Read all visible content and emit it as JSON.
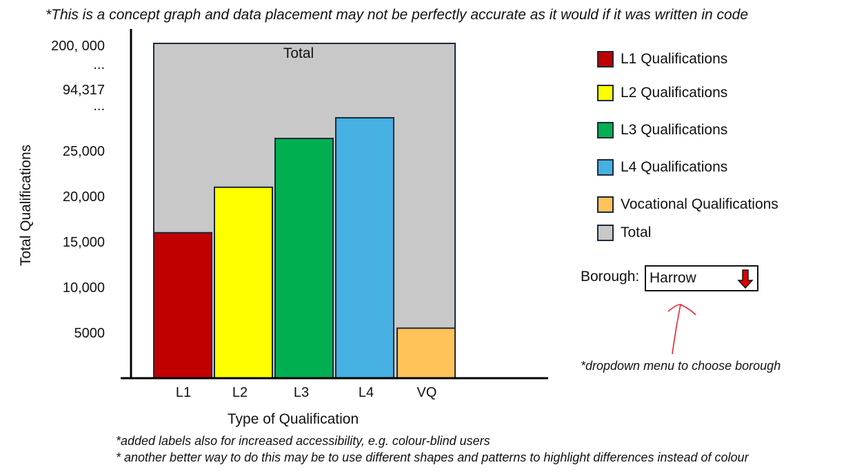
{
  "notes": {
    "top": "*This is a concept graph and data placement may not be perfectly accurate as it would if it was written in code",
    "accessibility": "*added labels also for increased accessibility, e.g. colour-blind users",
    "shapes": "* another better way to do this may be to use different shapes and patterns to highlight differences instead of colour",
    "dropdown": "*dropdown menu to choose borough"
  },
  "borough": {
    "label": "Borough:",
    "value": "Harrow",
    "icon": "red-down-arrow-icon"
  },
  "legend": [
    {
      "label": "L1 Qualifications",
      "color": "#c00000"
    },
    {
      "label": "L2 Qualifications",
      "color": "#ffff00"
    },
    {
      "label": "L3 Qualifications",
      "color": "#00b050"
    },
    {
      "label": "L4 Qualifications",
      "color": "#45b0e1"
    },
    {
      "label": "Vocational Qualifications",
      "color": "#ffc35a"
    },
    {
      "label": "Total",
      "color": "#c8c8c8"
    }
  ],
  "chart_data": {
    "type": "bar",
    "xlabel": "Type of Qualification",
    "ylabel": "Total Qualifications",
    "categories": [
      "L1",
      "L2",
      "L3",
      "L4",
      "VQ"
    ],
    "values": [
      16000,
      21000,
      28000,
      33000,
      5500
    ],
    "colors": [
      "#c00000",
      "#ffff00",
      "#00b050",
      "#45b0e1",
      "#ffc35a"
    ],
    "total": {
      "label": "Total",
      "value": 94317,
      "color": "#c8c8c8"
    },
    "y_ticks": [
      "5000",
      "10,000",
      "15,000",
      "20,000",
      "25,000",
      "...",
      "94,317",
      "...",
      "200, 000"
    ],
    "grid": false,
    "legend_position": "right"
  }
}
